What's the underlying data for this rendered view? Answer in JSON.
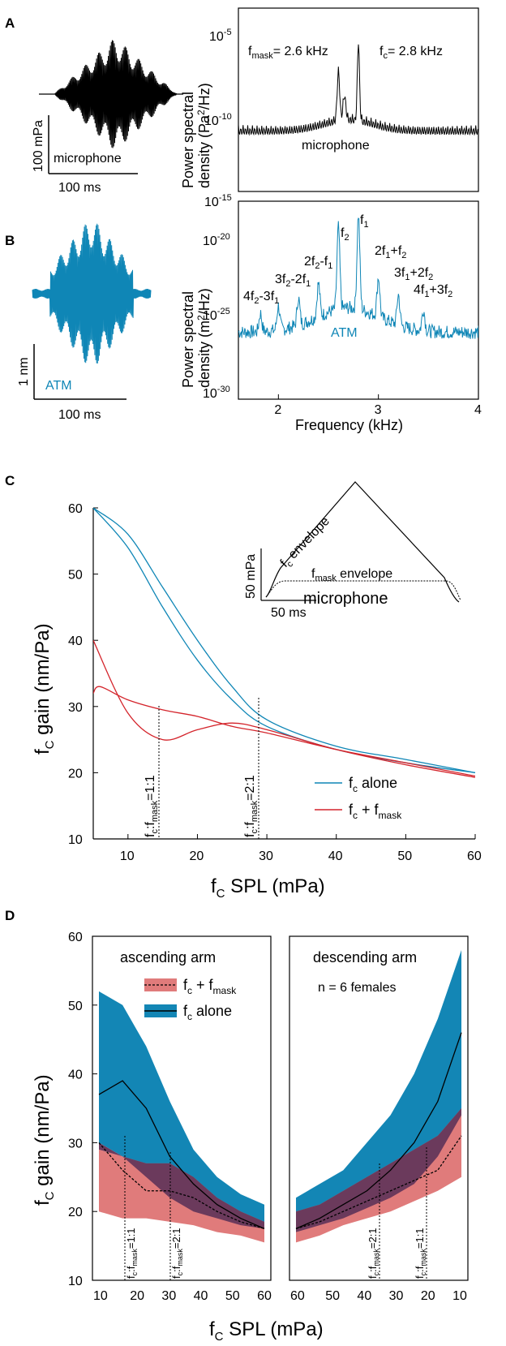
{
  "colors": {
    "atm": "#0f86b6",
    "red": "#d4242b",
    "pink": "#e07b7b",
    "blue_band": "#1386b5",
    "overlap": "#6b3a5c",
    "black": "#000000"
  },
  "panels": [
    "A",
    "B",
    "C",
    "D"
  ],
  "panelA": {
    "scalebar_y": "100 mPa",
    "scalebar_x": "100 ms",
    "trace_label": "microphone",
    "psd_ylabel_1": "Power spectral",
    "psd_ylabel_2": "density (Pa²/Hz)",
    "psd_trace_label": "microphone",
    "fmask_label": "fmask= 2.6 kHz",
    "fc_label": "fc= 2.8 kHz",
    "yticks": [
      "10⁻⁵",
      "10⁻¹⁰",
      "10⁻¹⁵"
    ]
  },
  "panelB": {
    "scalebar_y": "1 nm",
    "scalebar_x": "100 ms",
    "trace_label": "ATM",
    "psd_ylabel_1": "Power spectral",
    "psd_ylabel_2": "density (m²/Hz)",
    "psd_trace_label": "ATM",
    "yticks": [
      "10⁻²⁰",
      "10⁻²⁵",
      "10⁻³⁰"
    ],
    "xticks": [
      "2",
      "3",
      "4"
    ],
    "xlabel": "Frequency (kHz)",
    "peaks": [
      "f2",
      "f1",
      "2f2-f1",
      "2f1+f2",
      "3f2-2f1",
      "3f1+2f2",
      "4f2-3f1",
      "4f1+3f2"
    ]
  },
  "chart_data": [
    {
      "type": "line",
      "panel": "B",
      "xlabel": "Frequency (kHz)",
      "ylabel": "Power spectral density (m²/Hz)",
      "xlim": [
        1.6,
        4.0
      ],
      "ylim_log10": [
        -30,
        -17
      ],
      "series": [
        {
          "name": "ATM",
          "peaks_khz": [
            1.82,
            2.0,
            2.2,
            2.4,
            2.6,
            2.8,
            3.0,
            3.2,
            3.45
          ]
        }
      ]
    },
    {
      "type": "line",
      "panel": "C",
      "xlabel": "fc SPL (mPa)",
      "ylabel": "fc gain (nm/Pa)",
      "xlim": [
        5,
        60
      ],
      "ylim": [
        10,
        60
      ],
      "xticks": [
        "10",
        "20",
        "30",
        "40",
        "50",
        "60"
      ],
      "yticks": [
        "10",
        "20",
        "30",
        "40",
        "50",
        "60"
      ],
      "series": [
        {
          "name": "fc alone",
          "color": "#0f86b6",
          "x": [
            5,
            10,
            15,
            20,
            25,
            30,
            40,
            50,
            60
          ],
          "y": [
            60,
            56,
            48,
            40,
            33,
            28,
            24,
            22,
            20
          ]
        },
        {
          "name": "fc alone",
          "color": "#0f86b6",
          "x": [
            5,
            10,
            15,
            20,
            25,
            30,
            40,
            50,
            60
          ],
          "y": [
            60,
            54,
            45,
            37,
            31,
            27,
            23.5,
            21.5,
            20
          ]
        },
        {
          "name": "fc + fmask",
          "color": "#d4242b",
          "x": [
            5,
            6,
            10,
            15,
            20,
            25,
            30,
            40,
            50,
            60
          ],
          "y": [
            32,
            33,
            31,
            29.5,
            28.5,
            27,
            26,
            23.5,
            21.5,
            19.5
          ]
        },
        {
          "name": "fc + fmask",
          "color": "#d4242b",
          "x": [
            5,
            10,
            15,
            20,
            25,
            30,
            40,
            50,
            60
          ],
          "y": [
            40,
            29,
            25,
            26.5,
            27.5,
            26.5,
            23.5,
            21.2,
            19.3
          ]
        }
      ],
      "markers": [
        {
          "x": 15,
          "label": "fc:fmask=1:1"
        },
        {
          "x": 30,
          "label": "fc:fmask=2:1"
        }
      ]
    },
    {
      "type": "area",
      "panel": "D",
      "xlabel": "fc SPL (mPa)",
      "ylabel": "fc gain (nm/Pa)",
      "ylim": [
        10,
        60
      ],
      "yticks": [
        "10",
        "20",
        "30",
        "40",
        "50",
        "60"
      ],
      "xticks_asc": [
        "10",
        "20",
        "30",
        "40",
        "50",
        "60"
      ],
      "xticks_desc": [
        "60",
        "50",
        "40",
        "30",
        "20",
        "10"
      ],
      "subplots": [
        "ascending arm",
        "descending arm"
      ],
      "series": [
        {
          "name": "fc + fmask",
          "mean": [
            30,
            26,
            23,
            23,
            22,
            20,
            18.5,
            17.5
          ]
        },
        {
          "name": "fc alone",
          "mean": [
            37,
            39,
            35,
            28,
            24,
            21,
            19,
            17.5
          ]
        }
      ],
      "annotation": "n = 6 females"
    }
  ],
  "panelC": {
    "title": "",
    "ylabel_main": "f",
    "ylabel_sub": "C",
    "ylabel_rest": " gain (nm/Pa)",
    "xlabel_main": "f",
    "xlabel_sub": "C",
    "xlabel_rest": " SPL (mPa)",
    "legend_fc_alone": "fc alone",
    "legend_fc_mask": "fc + fmask",
    "inset_scale_y": "50 mPa",
    "inset_scale_x": "50 ms",
    "inset_label": "microphone",
    "inset_env1": "fc envelope",
    "inset_env2": "fmask envelope",
    "marker1": "fc:fmask=1:1",
    "marker2": "fc:fmask=2:1"
  },
  "panelD": {
    "asc_title": "ascending arm",
    "desc_title": "descending arm",
    "n_label": "n = 6 females",
    "legend_mask": "fc + fmask",
    "legend_alone": "fc alone",
    "marker_a1": "fc:fmask=1:1",
    "marker_a2": "fc:fmask=2:1",
    "marker_d1": "fc:fmask=2:1",
    "marker_d2": "fc:fmask=1:1"
  }
}
